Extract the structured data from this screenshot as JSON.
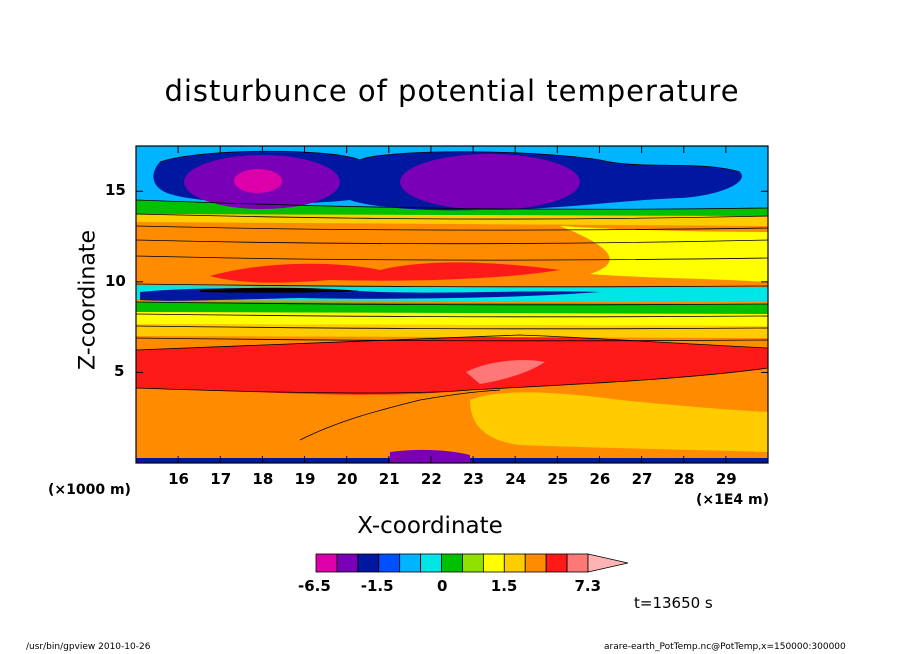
{
  "chart_data": {
    "type": "heatmap",
    "title": "disturbunce of potential temperature",
    "xlabel": "X-coordinate",
    "ylabel": "Z-coordinate",
    "x_unit": "(×1E4 m)",
    "y_unit": "(×1000 m)",
    "x_ticks": [
      "16",
      "17",
      "18",
      "19",
      "20",
      "21",
      "22",
      "23",
      "24",
      "25",
      "26",
      "27",
      "28",
      "29"
    ],
    "y_ticks": [
      "5",
      "10",
      "15"
    ],
    "xlim": [
      15,
      30
    ],
    "ylim": [
      0,
      17.5
    ],
    "colorbar": {
      "levels": [
        -6.5,
        -5,
        -3.5,
        -1.5,
        -1,
        -0.5,
        0,
        0.5,
        1,
        1.5,
        2.5,
        3.5,
        5,
        7.3
      ],
      "colors": [
        "#dd00aa",
        "#7a00b8",
        "#0018a0",
        "#0050ff",
        "#00b4ff",
        "#00e6e6",
        "#00c000",
        "#90e000",
        "#ffff00",
        "#ffcc00",
        "#ff8c00",
        "#ff1a1a",
        "#ff7878",
        "#ffb4b4"
      ],
      "tick_labels": [
        "-6.5",
        "-1.5",
        "0",
        "1.5",
        "7.3"
      ],
      "tick_values": [
        -6.5,
        -1.5,
        0,
        1.5,
        7.3
      ]
    },
    "annotation": "t=13650 s"
  },
  "footer": {
    "left": "/usr/bin/gpview   2010-10-26",
    "right": "arare-earth_PotTemp.nc@PotTemp,x=150000:300000"
  }
}
